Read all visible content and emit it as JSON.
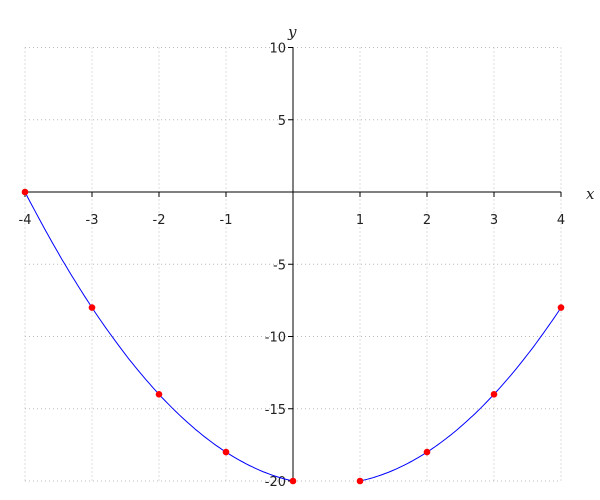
{
  "chart_data": {
    "type": "line",
    "xlabel": "x",
    "ylabel": "y",
    "xlim": [
      -4,
      4
    ],
    "ylim": [
      -20,
      10
    ],
    "xticks": [
      -4,
      -3,
      -2,
      -1,
      1,
      2,
      3,
      4
    ],
    "yticks": [
      -20,
      -15,
      -10,
      -5,
      5,
      10
    ],
    "grid": true,
    "line_color": "#0000ff",
    "point_color": "#ff0000",
    "series": [
      {
        "points": [
          [
            -4,
            0
          ],
          [
            -3,
            -8
          ],
          [
            -2,
            -14
          ],
          [
            -1,
            -18
          ],
          [
            0,
            -20
          ]
        ]
      },
      {
        "points": [
          [
            1,
            -20
          ],
          [
            2,
            -18
          ],
          [
            3,
            -14
          ],
          [
            4,
            -8
          ]
        ]
      }
    ]
  }
}
